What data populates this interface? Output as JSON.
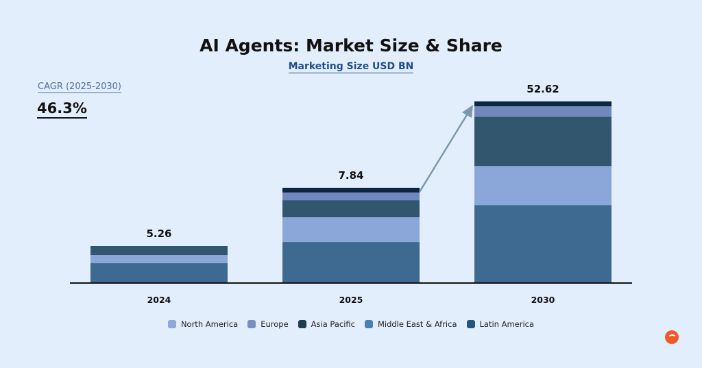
{
  "chart_data": {
    "type": "bar",
    "stacked": true,
    "title": "AI Agents: Market Size & Share",
    "subtitle": "Marketing Size USD BN",
    "categories": [
      "2024",
      "2025",
      "2030"
    ],
    "totals": [
      "5.26",
      "7.84",
      "52.62"
    ],
    "series": [
      {
        "name": "Middle East & Africa",
        "color": "#3e6990",
        "values": [
          2.82,
          3.38,
          22.6
        ]
      },
      {
        "name": "North America",
        "color": "#8ba6d8",
        "values": [
          1.17,
          2.03,
          11.3
        ]
      },
      {
        "name": "Asia Pacific",
        "color": "#33566f",
        "values": [
          1.27,
          1.41,
          14.3
        ]
      },
      {
        "name": "Europe",
        "color": "#7088be",
        "values": [
          0,
          0.63,
          3.0
        ]
      },
      {
        "name": "Latin America",
        "color": "#0e2540",
        "values": [
          0,
          0.39,
          1.42
        ]
      }
    ],
    "legend": [
      {
        "name": "North America",
        "color": "#8ea8db"
      },
      {
        "name": "Europe",
        "color": "#7a8fc0"
      },
      {
        "name": "Asia Pacific",
        "color": "#1e3d4c"
      },
      {
        "name": "Middle East & Africa",
        "color": "#4a80b0"
      },
      {
        "name": "Latin America",
        "color": "#24557e"
      }
    ],
    "legend_position": "bottom",
    "grid": false,
    "annotation": "arrow from 2025 to 2030"
  },
  "cagr": {
    "label": "CAGR (2025-2030)",
    "value": "46.3%"
  },
  "logo": {
    "icon": "brand-logo",
    "color": "#f05a28"
  }
}
